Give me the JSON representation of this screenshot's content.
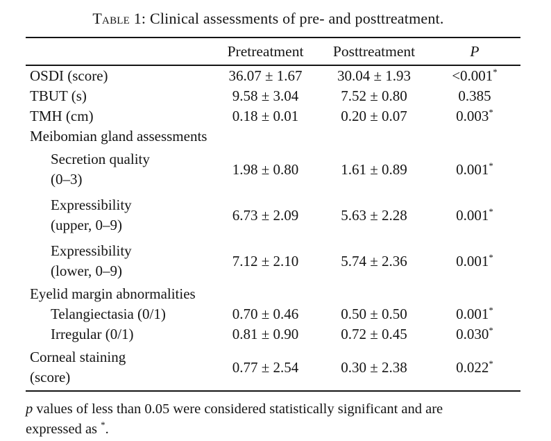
{
  "caption": {
    "label_smallcaps": "Table",
    "rest": " 1: Clinical assessments of pre- and posttreatment."
  },
  "table": {
    "headers": {
      "pretreatment": "Pretreatment",
      "posttreatment": "Posttreatment",
      "p": "P"
    },
    "rows": [
      {
        "label": "OSDI (score)",
        "pre": "36.07 ± 1.67",
        "post": "30.04 ± 1.93",
        "p": "<0.001",
        "star": "*"
      },
      {
        "label": "TBUT (s)",
        "pre": "9.58 ± 3.04",
        "post": "7.52 ± 0.80",
        "p": "0.385",
        "star": ""
      },
      {
        "label": "TMH (cm)",
        "pre": "0.18 ± 0.01",
        "post": "0.20 ± 0.07",
        "p": "0.003",
        "star": "*"
      },
      {
        "label": "Meibomian gland assessments"
      },
      {
        "label": "Secretion quality\n(0–3)",
        "pre": "1.98 ± 0.80",
        "post": "1.61 ± 0.89",
        "p": "0.001",
        "star": "*"
      },
      {
        "label": "Expressibility\n(upper, 0–9)",
        "pre": "6.73 ± 2.09",
        "post": "5.63 ± 2.28",
        "p": "0.001",
        "star": "*"
      },
      {
        "label": "Expressibility\n(lower, 0–9)",
        "pre": "7.12 ± 2.10",
        "post": "5.74 ± 2.36",
        "p": "0.001",
        "star": "*"
      },
      {
        "label": "Eyelid margin abnormalities"
      },
      {
        "label": "Telangiectasia (0/1)",
        "pre": "0.70 ± 0.46",
        "post": "0.50 ± 0.50",
        "p": "0.001",
        "star": "*"
      },
      {
        "label": "Irregular (0/1)",
        "pre": "0.81 ± 0.90",
        "post": "0.72 ± 0.45",
        "p": "0.030",
        "star": "*"
      },
      {
        "label": "Corneal staining\n(score)",
        "pre": "0.77 ± 2.54",
        "post": "0.30 ± 2.38",
        "p": "0.022",
        "star": "*"
      }
    ]
  },
  "footnote": {
    "p_italic": "p",
    "line1": " values of less than 0.05 were considered statistically significant and are",
    "line2": "expressed as ",
    "star": "*",
    "period": "."
  }
}
